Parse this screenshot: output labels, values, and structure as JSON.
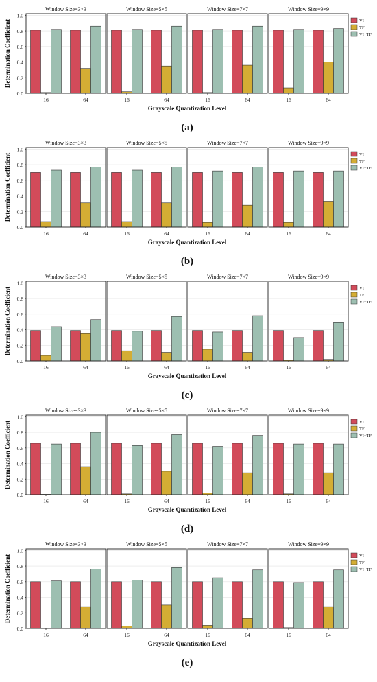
{
  "colors": {
    "VI": "#d24b5a",
    "TF": "#d4ad34",
    "VI+TF": "#9dbfb1"
  },
  "shared": {
    "window_titles": [
      "Window Size=3×3",
      "Window Size=5×5",
      "Window Size=7×7",
      "Window Size=9×9"
    ],
    "categories": [
      "16",
      "64"
    ],
    "ylabel": "Determination Coefficient",
    "xlabel": "Grayscale Quantization Level",
    "yticks": [
      "0.0",
      "0.2",
      "0.4",
      "0.6",
      "0.8",
      "1.0"
    ],
    "legend": [
      "VI",
      "TF",
      "VI+TF"
    ]
  },
  "chart_data": [
    {
      "type": "bar",
      "panel_label": "(a)",
      "ylim": [
        0,
        1
      ],
      "legend_placement": "right",
      "windows": [
        {
          "title": "Window Size=3×3",
          "categories": [
            "16",
            "64"
          ],
          "series": [
            {
              "name": "VI",
              "values": [
                0.81,
                0.81
              ]
            },
            {
              "name": "TF",
              "values": [
                0.01,
                0.32
              ]
            },
            {
              "name": "VI+TF",
              "values": [
                0.82,
                0.86
              ]
            }
          ]
        },
        {
          "title": "Window Size=5×5",
          "categories": [
            "16",
            "64"
          ],
          "series": [
            {
              "name": "VI",
              "values": [
                0.81,
                0.81
              ]
            },
            {
              "name": "TF",
              "values": [
                0.02,
                0.35
              ]
            },
            {
              "name": "VI+TF",
              "values": [
                0.82,
                0.86
              ]
            }
          ]
        },
        {
          "title": "Window Size=7×7",
          "categories": [
            "16",
            "64"
          ],
          "series": [
            {
              "name": "VI",
              "values": [
                0.81,
                0.81
              ]
            },
            {
              "name": "TF",
              "values": [
                0.01,
                0.36
              ]
            },
            {
              "name": "VI+TF",
              "values": [
                0.82,
                0.86
              ]
            }
          ]
        },
        {
          "title": "Window Size=9×9",
          "categories": [
            "16",
            "64"
          ],
          "series": [
            {
              "name": "VI",
              "values": [
                0.81,
                0.81
              ]
            },
            {
              "name": "TF",
              "values": [
                0.07,
                0.4
              ]
            },
            {
              "name": "VI+TF",
              "values": [
                0.82,
                0.83
              ]
            }
          ]
        }
      ]
    },
    {
      "type": "bar",
      "panel_label": "(b)",
      "ylim": [
        0,
        1
      ],
      "legend_placement": "right",
      "windows": [
        {
          "title": "Window Size=3×3",
          "categories": [
            "16",
            "64"
          ],
          "series": [
            {
              "name": "VI",
              "values": [
                0.7,
                0.7
              ]
            },
            {
              "name": "TF",
              "values": [
                0.07,
                0.31
              ]
            },
            {
              "name": "VI+TF",
              "values": [
                0.73,
                0.77
              ]
            }
          ]
        },
        {
          "title": "Window Size=5×5",
          "categories": [
            "16",
            "64"
          ],
          "series": [
            {
              "name": "VI",
              "values": [
                0.7,
                0.7
              ]
            },
            {
              "name": "TF",
              "values": [
                0.07,
                0.31
              ]
            },
            {
              "name": "VI+TF",
              "values": [
                0.73,
                0.77
              ]
            }
          ]
        },
        {
          "title": "Window Size=7×7",
          "categories": [
            "16",
            "64"
          ],
          "series": [
            {
              "name": "VI",
              "values": [
                0.7,
                0.7
              ]
            },
            {
              "name": "TF",
              "values": [
                0.06,
                0.28
              ]
            },
            {
              "name": "VI+TF",
              "values": [
                0.72,
                0.77
              ]
            }
          ]
        },
        {
          "title": "Window Size=9×9",
          "categories": [
            "16",
            "64"
          ],
          "series": [
            {
              "name": "VI",
              "values": [
                0.7,
                0.7
              ]
            },
            {
              "name": "TF",
              "values": [
                0.06,
                0.33
              ]
            },
            {
              "name": "VI+TF",
              "values": [
                0.72,
                0.72
              ]
            }
          ]
        }
      ]
    },
    {
      "type": "bar",
      "panel_label": "(c)",
      "ylim": [
        0,
        1
      ],
      "legend_placement": "right",
      "windows": [
        {
          "title": "Window Size=3×3",
          "categories": [
            "16",
            "64"
          ],
          "series": [
            {
              "name": "VI",
              "values": [
                0.39,
                0.39
              ]
            },
            {
              "name": "TF",
              "values": [
                0.07,
                0.35
              ]
            },
            {
              "name": "VI+TF",
              "values": [
                0.44,
                0.53
              ]
            }
          ]
        },
        {
          "title": "Window Size=5×5",
          "categories": [
            "16",
            "64"
          ],
          "series": [
            {
              "name": "VI",
              "values": [
                0.39,
                0.39
              ]
            },
            {
              "name": "TF",
              "values": [
                0.13,
                0.11
              ]
            },
            {
              "name": "VI+TF",
              "values": [
                0.38,
                0.57
              ]
            }
          ]
        },
        {
          "title": "Window Size=7×7",
          "categories": [
            "16",
            "64"
          ],
          "series": [
            {
              "name": "VI",
              "values": [
                0.39,
                0.39
              ]
            },
            {
              "name": "TF",
              "values": [
                0.15,
                0.11
              ]
            },
            {
              "name": "VI+TF",
              "values": [
                0.37,
                0.58
              ]
            }
          ]
        },
        {
          "title": "Window Size=9×9",
          "categories": [
            "16",
            "64"
          ],
          "series": [
            {
              "name": "VI",
              "values": [
                0.39,
                0.39
              ]
            },
            {
              "name": "TF",
              "values": [
                0.01,
                0.02
              ]
            },
            {
              "name": "VI+TF",
              "values": [
                0.3,
                0.49
              ]
            }
          ]
        }
      ]
    },
    {
      "type": "bar",
      "panel_label": "(d)",
      "ylim": [
        0,
        1
      ],
      "legend_placement": "right",
      "windows": [
        {
          "title": "Window Size=3×3",
          "categories": [
            "16",
            "64"
          ],
          "series": [
            {
              "name": "VI",
              "values": [
                0.66,
                0.66
              ]
            },
            {
              "name": "TF",
              "values": [
                0.005,
                0.36
              ]
            },
            {
              "name": "VI+TF",
              "values": [
                0.65,
                0.8
              ]
            }
          ]
        },
        {
          "title": "Window Size=5×5",
          "categories": [
            "16",
            "64"
          ],
          "series": [
            {
              "name": "VI",
              "values": [
                0.66,
                0.66
              ]
            },
            {
              "name": "TF",
              "values": [
                0.01,
                0.3
              ]
            },
            {
              "name": "VI+TF",
              "values": [
                0.63,
                0.77
              ]
            }
          ]
        },
        {
          "title": "Window Size=7×7",
          "categories": [
            "16",
            "64"
          ],
          "series": [
            {
              "name": "VI",
              "values": [
                0.66,
                0.66
              ]
            },
            {
              "name": "TF",
              "values": [
                0.02,
                0.28
              ]
            },
            {
              "name": "VI+TF",
              "values": [
                0.62,
                0.76
              ]
            }
          ]
        },
        {
          "title": "Window Size=9×9",
          "categories": [
            "16",
            "64"
          ],
          "series": [
            {
              "name": "VI",
              "values": [
                0.66,
                0.66
              ]
            },
            {
              "name": "TF",
              "values": [
                0.01,
                0.28
              ]
            },
            {
              "name": "VI+TF",
              "values": [
                0.65,
                0.65
              ]
            }
          ]
        }
      ]
    },
    {
      "type": "bar",
      "panel_label": "(e)",
      "ylim": [
        0,
        1
      ],
      "legend_placement": "right",
      "windows": [
        {
          "title": "Window Size=3×3",
          "categories": [
            "16",
            "64"
          ],
          "series": [
            {
              "name": "VI",
              "values": [
                0.6,
                0.6
              ]
            },
            {
              "name": "TF",
              "values": [
                0.005,
                0.28
              ]
            },
            {
              "name": "VI+TF",
              "values": [
                0.61,
                0.76
              ]
            }
          ]
        },
        {
          "title": "Window Size=5×5",
          "categories": [
            "16",
            "64"
          ],
          "series": [
            {
              "name": "VI",
              "values": [
                0.6,
                0.6
              ]
            },
            {
              "name": "TF",
              "values": [
                0.03,
                0.3
              ]
            },
            {
              "name": "VI+TF",
              "values": [
                0.62,
                0.78
              ]
            }
          ]
        },
        {
          "title": "Window Size=7×7",
          "categories": [
            "16",
            "64"
          ],
          "series": [
            {
              "name": "VI",
              "values": [
                0.6,
                0.6
              ]
            },
            {
              "name": "TF",
              "values": [
                0.04,
                0.13
              ]
            },
            {
              "name": "VI+TF",
              "values": [
                0.65,
                0.75
              ]
            }
          ]
        },
        {
          "title": "Window Size=9×9",
          "categories": [
            "16",
            "64"
          ],
          "series": [
            {
              "name": "VI",
              "values": [
                0.6,
                0.6
              ]
            },
            {
              "name": "TF",
              "values": [
                0.01,
                0.28
              ]
            },
            {
              "name": "VI+TF",
              "values": [
                0.59,
                0.75
              ]
            }
          ]
        }
      ]
    }
  ]
}
